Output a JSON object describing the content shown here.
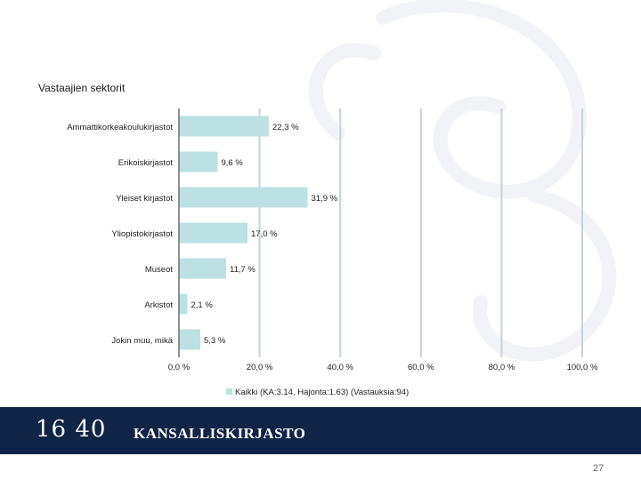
{
  "chart_data": {
    "type": "bar",
    "orientation": "horizontal",
    "title": "Vastaajien sektorit",
    "categories": [
      "Ammattikorkeakoulukirjastot",
      "Erikoiskirjastot",
      "Yleiset kirjastot",
      "Yliopistokirjastot",
      "Museot",
      "Arkistot",
      "Jokin muu, mikä"
    ],
    "values": [
      22.3,
      9.6,
      31.9,
      17.0,
      11.7,
      2.1,
      5.3
    ],
    "data_labels": [
      "22,3 %",
      "9,6 %",
      "31,9 %",
      "17,0 %",
      "11,7 %",
      "2,1 %",
      "5,3 %"
    ],
    "xlim": [
      0,
      100
    ],
    "xticks": [
      0,
      20,
      40,
      60,
      80,
      100
    ],
    "xtick_labels": [
      "0,0 %",
      "20,0 %",
      "40,0 %",
      "60,0 %",
      "80,0 %",
      "100,0 %"
    ],
    "legend": {
      "label": "Kaikki (KA:3.14, Hajonta:1.63) (Vastauksia:94)",
      "placement": "bottom"
    },
    "grid": true,
    "bar_color": "#bde0e2",
    "grid_color": "#c8d2dc"
  },
  "footer": {
    "logo_number": "16 40",
    "logo_text": "KANSALLISKIRJASTO",
    "band_color": "#0f2447"
  },
  "page_number": "27"
}
